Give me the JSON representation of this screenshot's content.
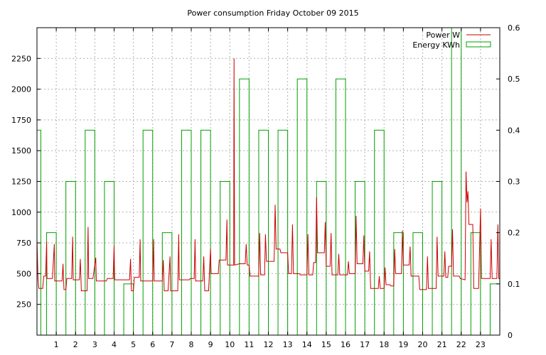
{
  "chart_data": {
    "type": "line",
    "title": "Power consumption Friday October 09 2015",
    "x_ticks": [
      "1",
      "2",
      "3",
      "4",
      "5",
      "6",
      "7",
      "8",
      "9",
      "10",
      "11",
      "12",
      "13",
      "14",
      "15",
      "16",
      "17",
      "18",
      "19",
      "20",
      "21",
      "22",
      "23"
    ],
    "xlim": [
      0,
      24
    ],
    "y_left": {
      "ticks": [
        "250",
        "500",
        "750",
        "1000",
        "1250",
        "1500",
        "1750",
        "2000",
        "2250"
      ],
      "lim": [
        0,
        2500
      ]
    },
    "y_right": {
      "ticks": [
        "0",
        "0.1",
        "0.2",
        "0.3",
        "0.4",
        "0.5",
        "0.6"
      ],
      "lim": [
        0,
        0.6
      ]
    },
    "grid": true,
    "legend": {
      "position": "top-right",
      "entries": [
        "Power W",
        "Energy KWh"
      ]
    },
    "series": [
      {
        "name": "Power W",
        "axis": "left",
        "color": "#cc0000",
        "points": [
          [
            0.0,
            780
          ],
          [
            0.05,
            460
          ],
          [
            0.1,
            380
          ],
          [
            0.3,
            380
          ],
          [
            0.35,
            480
          ],
          [
            0.45,
            480
          ],
          [
            0.5,
            760
          ],
          [
            0.52,
            460
          ],
          [
            0.8,
            460
          ],
          [
            0.9,
            740
          ],
          [
            0.92,
            440
          ],
          [
            1.3,
            440
          ],
          [
            1.35,
            580
          ],
          [
            1.4,
            370
          ],
          [
            1.5,
            370
          ],
          [
            1.55,
            460
          ],
          [
            1.8,
            460
          ],
          [
            1.85,
            800
          ],
          [
            1.88,
            450
          ],
          [
            2.2,
            450
          ],
          [
            2.25,
            620
          ],
          [
            2.3,
            360
          ],
          [
            2.6,
            360
          ],
          [
            2.65,
            880
          ],
          [
            2.68,
            460
          ],
          [
            2.9,
            460
          ],
          [
            3.05,
            630
          ],
          [
            3.08,
            440
          ],
          [
            3.6,
            440
          ],
          [
            3.65,
            460
          ],
          [
            3.95,
            460
          ],
          [
            4.0,
            730
          ],
          [
            4.03,
            450
          ],
          [
            4.8,
            450
          ],
          [
            4.85,
            620
          ],
          [
            4.9,
            360
          ],
          [
            5.0,
            360
          ],
          [
            5.05,
            470
          ],
          [
            5.3,
            470
          ],
          [
            5.35,
            780
          ],
          [
            5.38,
            440
          ],
          [
            6.0,
            440
          ],
          [
            6.05,
            780
          ],
          [
            6.08,
            440
          ],
          [
            6.5,
            440
          ],
          [
            6.55,
            610
          ],
          [
            6.6,
            360
          ],
          [
            6.8,
            360
          ],
          [
            6.9,
            640
          ],
          [
            6.93,
            360
          ],
          [
            7.3,
            360
          ],
          [
            7.35,
            820
          ],
          [
            7.38,
            450
          ],
          [
            7.9,
            450
          ],
          [
            7.95,
            460
          ],
          [
            8.15,
            460
          ],
          [
            8.2,
            780
          ],
          [
            8.23,
            440
          ],
          [
            8.6,
            440
          ],
          [
            8.65,
            640
          ],
          [
            8.7,
            360
          ],
          [
            8.9,
            360
          ],
          [
            9.0,
            700
          ],
          [
            9.03,
            500
          ],
          [
            9.4,
            500
          ],
          [
            9.45,
            610
          ],
          [
            9.8,
            610
          ],
          [
            9.85,
            940
          ],
          [
            9.88,
            570
          ],
          [
            10.2,
            570
          ],
          [
            10.22,
            2250
          ],
          [
            10.25,
            570
          ],
          [
            10.5,
            580
          ],
          [
            10.8,
            580
          ],
          [
            10.85,
            740
          ],
          [
            10.9,
            570
          ],
          [
            11.0,
            570
          ],
          [
            11.05,
            480
          ],
          [
            11.5,
            480
          ],
          [
            11.55,
            830
          ],
          [
            11.6,
            490
          ],
          [
            11.8,
            490
          ],
          [
            11.85,
            820
          ],
          [
            11.9,
            600
          ],
          [
            12.3,
            600
          ],
          [
            12.35,
            1060
          ],
          [
            12.4,
            700
          ],
          [
            12.6,
            700
          ],
          [
            12.65,
            670
          ],
          [
            13.0,
            670
          ],
          [
            13.05,
            500
          ],
          [
            13.2,
            500
          ],
          [
            13.25,
            900
          ],
          [
            13.3,
            500
          ],
          [
            13.6,
            500
          ],
          [
            13.65,
            490
          ],
          [
            14.0,
            490
          ],
          [
            14.05,
            820
          ],
          [
            14.1,
            490
          ],
          [
            14.3,
            490
          ],
          [
            14.35,
            590
          ],
          [
            14.45,
            590
          ],
          [
            14.5,
            1120
          ],
          [
            14.55,
            670
          ],
          [
            14.9,
            670
          ],
          [
            14.95,
            920
          ],
          [
            15.0,
            560
          ],
          [
            15.2,
            560
          ],
          [
            15.25,
            830
          ],
          [
            15.3,
            490
          ],
          [
            15.6,
            490
          ],
          [
            15.65,
            660
          ],
          [
            15.7,
            490
          ],
          [
            16.1,
            490
          ],
          [
            16.15,
            600
          ],
          [
            16.2,
            500
          ],
          [
            16.5,
            500
          ],
          [
            16.55,
            970
          ],
          [
            16.6,
            580
          ],
          [
            16.9,
            580
          ],
          [
            16.95,
            810
          ],
          [
            17.0,
            520
          ],
          [
            17.2,
            520
          ],
          [
            17.25,
            680
          ],
          [
            17.3,
            380
          ],
          [
            17.7,
            380
          ],
          [
            17.75,
            480
          ],
          [
            17.8,
            380
          ],
          [
            18.0,
            380
          ],
          [
            18.05,
            550
          ],
          [
            18.1,
            410
          ],
          [
            18.3,
            410
          ],
          [
            18.35,
            400
          ],
          [
            18.5,
            400
          ],
          [
            18.55,
            700
          ],
          [
            18.6,
            500
          ],
          [
            18.9,
            500
          ],
          [
            18.95,
            850
          ],
          [
            19.0,
            570
          ],
          [
            19.3,
            570
          ],
          [
            19.35,
            720
          ],
          [
            19.4,
            480
          ],
          [
            19.8,
            480
          ],
          [
            19.85,
            370
          ],
          [
            20.2,
            370
          ],
          [
            20.25,
            640
          ],
          [
            20.3,
            380
          ],
          [
            20.7,
            380
          ],
          [
            20.75,
            800
          ],
          [
            20.8,
            480
          ],
          [
            21.1,
            480
          ],
          [
            21.15,
            680
          ],
          [
            21.2,
            470
          ],
          [
            21.3,
            470
          ],
          [
            21.35,
            560
          ],
          [
            21.5,
            560
          ],
          [
            21.55,
            860
          ],
          [
            21.6,
            480
          ],
          [
            21.9,
            480
          ],
          [
            21.95,
            460
          ],
          [
            22.2,
            450
          ],
          [
            22.25,
            1330
          ],
          [
            22.3,
            1080
          ],
          [
            22.35,
            1170
          ],
          [
            22.4,
            900
          ],
          [
            22.6,
            900
          ],
          [
            22.65,
            380
          ],
          [
            22.9,
            380
          ],
          [
            23.0,
            1030
          ],
          [
            23.05,
            460
          ],
          [
            23.5,
            460
          ],
          [
            23.55,
            780
          ],
          [
            23.6,
            460
          ],
          [
            23.85,
            460
          ],
          [
            23.9,
            900
          ],
          [
            23.95,
            460
          ],
          [
            24.0,
            460
          ]
        ]
      },
      {
        "name": "Energy KWh",
        "axis": "right",
        "color": "#00a000",
        "hourly": [
          0.2,
          0.3,
          0.4,
          0.3,
          0.1,
          0.4,
          0.2,
          0.4,
          0.4,
          0.3,
          0.5,
          0.4,
          0.4,
          0.5,
          0.3,
          0.5,
          0.3,
          0.4,
          0.2,
          0.2,
          0.3,
          0.6,
          0.2,
          0.1
        ],
        "partial_first": {
          "value": 0.4,
          "x": [
            0,
            0.2
          ]
        }
      }
    ]
  }
}
